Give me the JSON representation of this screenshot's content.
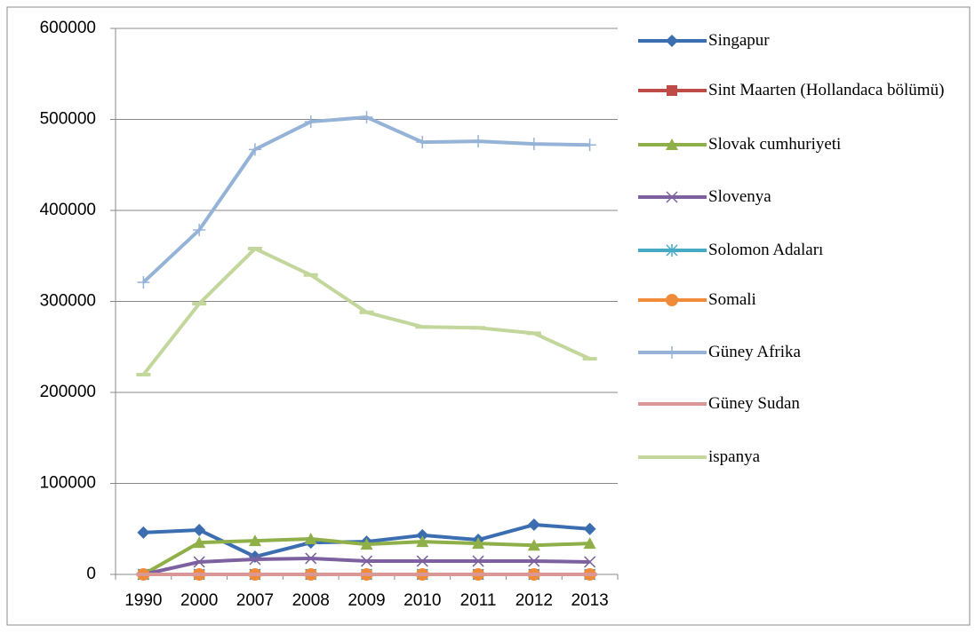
{
  "chart_data": {
    "type": "line",
    "categories": [
      "1990",
      "2000",
      "2007",
      "2008",
      "2009",
      "2010",
      "2011",
      "2012",
      "2013"
    ],
    "ylim": [
      0,
      600000
    ],
    "yticks": [
      0,
      100000,
      200000,
      300000,
      400000,
      500000,
      600000
    ],
    "grid": true,
    "legend": "right",
    "series": [
      {
        "name": "Singapur",
        "color": "#3b6eb0",
        "marker": "diamond",
        "values": [
          46000,
          48800,
          19500,
          35000,
          36000,
          43000,
          38000,
          54600,
          50000
        ]
      },
      {
        "name": "Sint Maarten (Hollandaca bölümü)",
        "color": "#be4b48",
        "marker": "square",
        "values": [
          0,
          0,
          0,
          0,
          0,
          0,
          0,
          0,
          0
        ]
      },
      {
        "name": "Slovak cumhuriyeti",
        "color": "#8fb048",
        "marker": "triangle",
        "values": [
          0,
          35000,
          37000,
          39000,
          33000,
          36000,
          34000,
          32000,
          34000
        ]
      },
      {
        "name": "Slovenya",
        "color": "#7d60a0",
        "marker": "x",
        "values": [
          0,
          13700,
          16600,
          17600,
          14600,
          14600,
          14600,
          14600,
          13700
        ]
      },
      {
        "name": "Solomon Adaları",
        "color": "#46aac5",
        "marker": "star",
        "values": [
          0,
          0,
          0,
          0,
          0,
          0,
          0,
          0,
          0
        ]
      },
      {
        "name": "Somali",
        "color": "#f08b3a",
        "marker": "circle",
        "values": [
          0,
          0,
          0,
          0,
          0,
          0,
          0,
          0,
          0
        ]
      },
      {
        "name": "Güney Afrika",
        "color": "#95b3d7",
        "marker": "plus",
        "values": [
          321000,
          378500,
          467000,
          497500,
          502400,
          475000,
          476000,
          473000,
          472000
        ]
      },
      {
        "name": "Güney Sudan",
        "color": "#d99795",
        "marker": "dash",
        "values": [
          0,
          0,
          0,
          0,
          0,
          0,
          0,
          0,
          0
        ]
      },
      {
        "name": "ispanya",
        "color": "#c3d69b",
        "marker": "dash",
        "values": [
          219500,
          297500,
          358000,
          329000,
          288000,
          272000,
          271000,
          265000,
          237000
        ]
      }
    ]
  }
}
